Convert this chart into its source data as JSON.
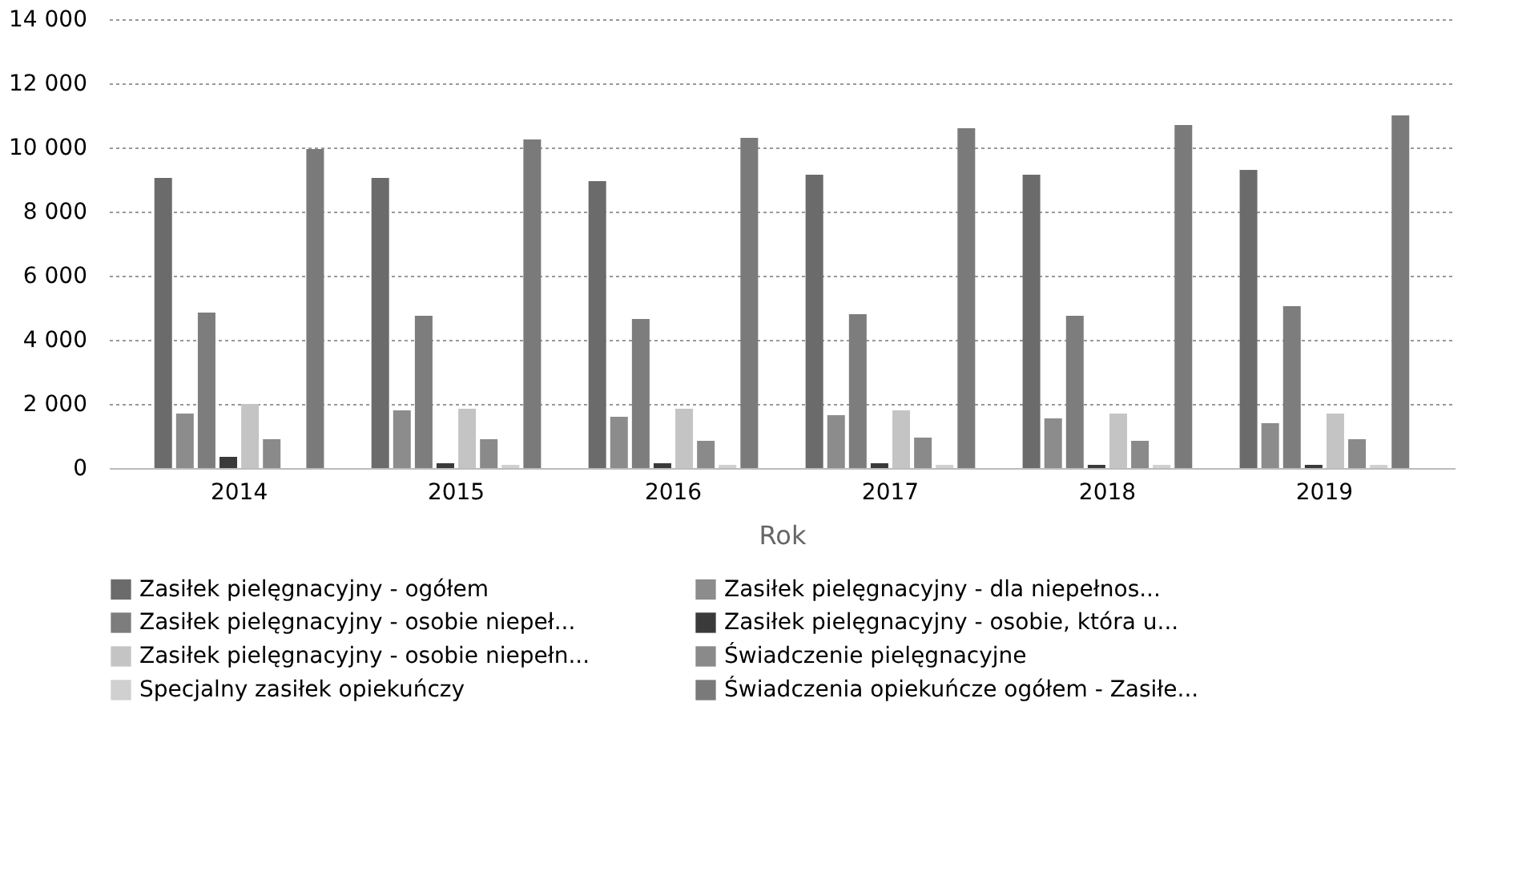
{
  "chart_data": {
    "type": "bar",
    "xlabel": "Rok",
    "categories": [
      "2014",
      "2015",
      "2016",
      "2017",
      "2018",
      "2019"
    ],
    "ylim": [
      0,
      14000
    ],
    "yticks": [
      {
        "value": 0,
        "label": "0"
      },
      {
        "value": 2000,
        "label": "2 000"
      },
      {
        "value": 4000,
        "label": "4 000"
      },
      {
        "value": 6000,
        "label": "6 000"
      },
      {
        "value": 8000,
        "label": "8 000"
      },
      {
        "value": 10000,
        "label": "10 000"
      },
      {
        "value": 12000,
        "label": "12 000"
      },
      {
        "value": 14000,
        "label": "14 000"
      }
    ],
    "grid": "y",
    "legend": "bottom",
    "series": [
      {
        "name": "Zasiłek pielęgnacyjny - ogółem",
        "color": "#6b6b6b",
        "values": [
          9050,
          9050,
          8950,
          9150,
          9150,
          9300
        ]
      },
      {
        "name": "Zasiłek pielęgnacyjny - dla niepełnos...",
        "color": "#8c8c8c",
        "values": [
          1700,
          1800,
          1600,
          1650,
          1550,
          1400
        ]
      },
      {
        "name": "Zasiłek pielęgnacyjny - osobie niepeł...",
        "color": "#7d7d7d",
        "values": [
          4850,
          4750,
          4650,
          4800,
          4750,
          5050
        ]
      },
      {
        "name": "Zasiłek pielęgnacyjny - osobie, która u...",
        "color": "#3a3a3a",
        "values": [
          350,
          150,
          150,
          150,
          100,
          100
        ]
      },
      {
        "name": "Zasiłek pielęgnacyjny -  osobie niepełn...",
        "color": "#c4c4c4",
        "values": [
          2000,
          1850,
          1850,
          1800,
          1700,
          1700
        ]
      },
      {
        "name": "Świadczenie pielęgnacyjne",
        "color": "#8a8a8a",
        "values": [
          900,
          900,
          850,
          950,
          850,
          900
        ]
      },
      {
        "name": "Specjalny zasiłek opiekuńczy",
        "color": "#d0d0d0",
        "values": [
          0,
          100,
          100,
          100,
          100,
          100
        ]
      },
      {
        "name": "Świadczenia opiekuńcze ogółem - Zasiłe...",
        "color": "#7a7a7a",
        "values": [
          9950,
          10250,
          10300,
          10600,
          10700,
          11000
        ]
      }
    ]
  }
}
